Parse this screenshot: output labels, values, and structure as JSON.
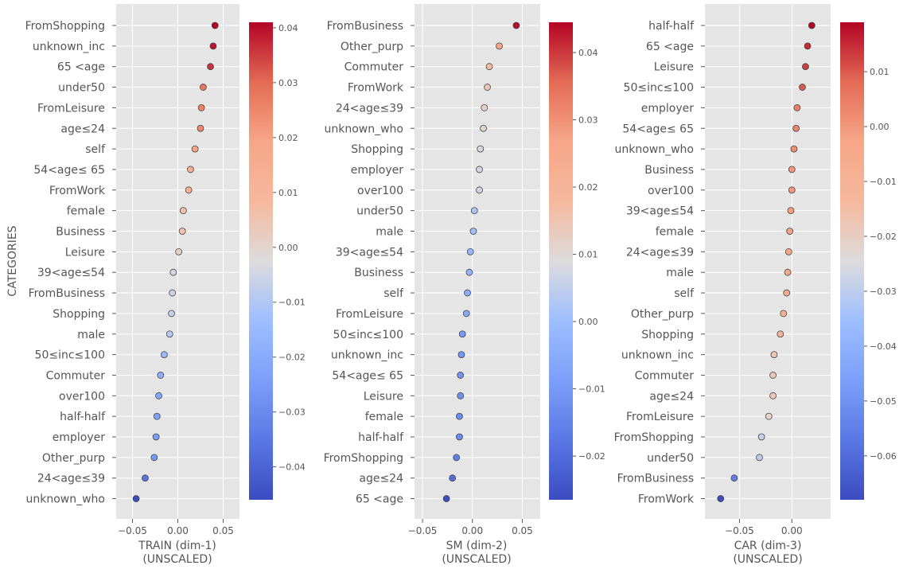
{
  "chart_data": [
    {
      "type": "scatter",
      "title": "",
      "xlabel_line1": "TRAIN (dim-1)",
      "xlabel_line2": "(UNSCALED)",
      "ylabel": "CATEGORIES",
      "xlim": [
        -0.068,
        0.068
      ],
      "xticks": [
        -0.05,
        0.0,
        0.05
      ],
      "xtick_labels": [
        "−0.05",
        "0.00",
        "0.05"
      ],
      "color_range": [
        -0.046,
        0.041
      ],
      "colorbar_ticks": [
        0.04,
        0.03,
        0.02,
        0.01,
        0.0,
        -0.01,
        -0.02,
        -0.03,
        -0.04
      ],
      "colorbar_tick_labels": [
        "0.04",
        "0.03",
        "0.02",
        "0.01",
        "0.00",
        "−0.01",
        "−0.02",
        "−0.03",
        "−0.04"
      ],
      "categories": [
        "FromShopping",
        "unknown_inc",
        "65 <age",
        "under50",
        "FromLeisure",
        "age≤24",
        "self",
        "54<age≤ 65",
        "FromWork",
        "female",
        "Business",
        "Leisure",
        "39<age≤54",
        "FromBusiness",
        "Shopping",
        "male",
        "50≤inc≤100",
        "Commuter",
        "over100",
        "half-half",
        "employer",
        "Other_purp",
        "24<age≤39",
        "unknown_who"
      ],
      "values": [
        0.041,
        0.039,
        0.036,
        0.028,
        0.026,
        0.025,
        0.019,
        0.014,
        0.012,
        0.006,
        0.005,
        0.001,
        -0.005,
        -0.006,
        -0.007,
        -0.009,
        -0.015,
        -0.019,
        -0.021,
        -0.023,
        -0.024,
        -0.026,
        -0.036,
        -0.046
      ]
    },
    {
      "type": "scatter",
      "title": "",
      "xlabel_line1": "SM (dim-2)",
      "xlabel_line2": "(UNSCALED)",
      "ylabel": "",
      "xlim": [
        -0.058,
        0.068
      ],
      "xticks": [
        -0.05,
        0.0,
        0.05
      ],
      "xtick_labels": [
        "−0.05",
        "0.00",
        "0.05"
      ],
      "color_range": [
        -0.0265,
        0.0445
      ],
      "colorbar_ticks": [
        0.04,
        0.03,
        0.02,
        0.01,
        0.0,
        -0.01,
        -0.02
      ],
      "colorbar_tick_labels": [
        "0.04",
        "0.03",
        "0.02",
        "0.01",
        "0.00",
        "−0.01",
        "−0.02"
      ],
      "categories": [
        "FromBusiness",
        "Other_purp",
        "Commuter",
        "FromWork",
        "24<age≤39",
        "unknown_who",
        "Shopping",
        "employer",
        "over100",
        "under50",
        "male",
        "39<age≤54",
        "Business",
        "self",
        "FromLeisure",
        "50≤inc≤100",
        "unknown_inc",
        "54<age≤ 65",
        "Leisure",
        "female",
        "half-half",
        "FromShopping",
        "age≤24",
        "65 <age"
      ],
      "values": [
        0.044,
        0.027,
        0.017,
        0.015,
        0.012,
        0.011,
        0.008,
        0.007,
        0.007,
        0.002,
        0.001,
        -0.002,
        -0.003,
        -0.005,
        -0.006,
        -0.01,
        -0.011,
        -0.012,
        -0.012,
        -0.013,
        -0.013,
        -0.016,
        -0.02,
        -0.026
      ]
    },
    {
      "type": "scatter",
      "title": "",
      "xlabel_line1": "CAR (dim-3)",
      "xlabel_line2": "(UNSCALED)",
      "ylabel": "",
      "xlim": [
        -0.083,
        0.037
      ],
      "xticks": [
        -0.05,
        0.0
      ],
      "xtick_labels": [
        "−0.05",
        "0.00"
      ],
      "color_range": [
        -0.068,
        0.019
      ],
      "colorbar_ticks": [
        0.01,
        0.0,
        -0.01,
        -0.02,
        -0.03,
        -0.04,
        -0.05,
        -0.06
      ],
      "colorbar_tick_labels": [
        "0.01",
        "0.00",
        "−0.01",
        "−0.02",
        "−0.03",
        "−0.04",
        "−0.05",
        "−0.06"
      ],
      "categories": [
        "half-half",
        "65 <age",
        "Leisure",
        "50≤inc≤100",
        "employer",
        "54<age≤ 65",
        "unknown_who",
        "Business",
        "over100",
        "39<age≤54",
        "female",
        "24<age≤39",
        "male",
        "self",
        "Other_purp",
        "Shopping",
        "unknown_inc",
        "Commuter",
        "age≤24",
        "FromLeisure",
        "FromShopping",
        "under50",
        "FromBusiness",
        "FromWork"
      ],
      "values": [
        0.019,
        0.015,
        0.013,
        0.01,
        0.005,
        0.004,
        0.002,
        0.0,
        0.0,
        -0.001,
        -0.002,
        -0.003,
        -0.004,
        -0.005,
        -0.008,
        -0.011,
        -0.017,
        -0.018,
        -0.018,
        -0.022,
        -0.029,
        -0.031,
        -0.055,
        -0.068
      ]
    }
  ]
}
